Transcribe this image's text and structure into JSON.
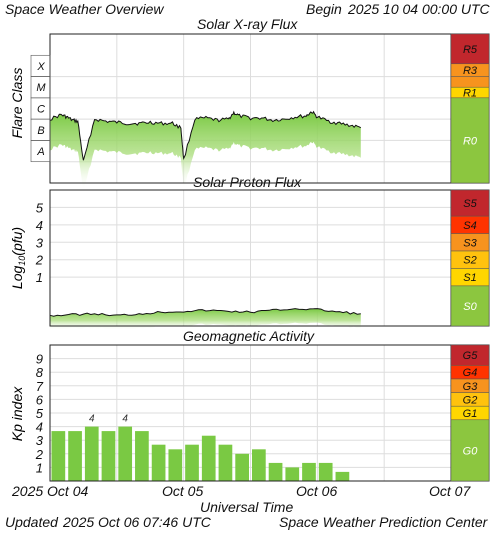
{
  "header": {
    "title": "Space Weather Overview",
    "begin_label": "Begin",
    "begin_time": "2025 10 04 00:00 UTC"
  },
  "footer": {
    "updated_label": "Updated",
    "updated_time": "2025 Oct 06 07:46 UTC",
    "source": "Space Weather Prediction Center"
  },
  "time_axis": {
    "label": "Universal Time",
    "ticks": [
      "2025 Oct 04",
      "Oct 05",
      "Oct 06",
      "Oct 07"
    ],
    "range_hours": [
      0,
      72
    ],
    "data_end_hours": 55.8
  },
  "colors": {
    "data_green": "#7ac943",
    "grid": "#dddddd",
    "scale_green": "#8cc63f",
    "yellow": "#ffd600",
    "orange": "#f7931e",
    "red_orange": "#ff3300",
    "dark_red": "#c1272d"
  },
  "chart_data": [
    {
      "id": "xray",
      "type": "line",
      "title": "Solar X-ray Flux",
      "ylabel": "Flare Class",
      "x_units": "hours since 2025-10-04 00:00 UTC",
      "y_scale": "log",
      "ylim_log10_wm2": [
        -9,
        -2
      ],
      "classes": [
        "X",
        "M",
        "C",
        "B",
        "A"
      ],
      "x": [
        0,
        2,
        3,
        4,
        5,
        6,
        8,
        10,
        12,
        14,
        16,
        18,
        20,
        22,
        23.5,
        24,
        26,
        28,
        30,
        32,
        33,
        34,
        36,
        38,
        40,
        42,
        44,
        46,
        47,
        48,
        50,
        52,
        54,
        55.8
      ],
      "y_log10": [
        -6.0,
        -5.8,
        -5.9,
        -6.05,
        -6.1,
        -8.0,
        -6.0,
        -6.1,
        -6.15,
        -6.2,
        -6.2,
        -6.15,
        -6.2,
        -6.2,
        -6.4,
        -7.9,
        -6.0,
        -5.95,
        -6.05,
        -6.0,
        -5.7,
        -5.85,
        -5.95,
        -5.95,
        -6.05,
        -6.0,
        -5.9,
        -5.85,
        -5.65,
        -5.9,
        -6.1,
        -6.2,
        -6.3,
        -6.4
      ],
      "scale": [
        {
          "label": "R5",
          "color": "#c1272d"
        },
        {
          "label": "R3",
          "color": "#f7931e"
        },
        {
          "label": "R1",
          "color": "#ffd600"
        },
        {
          "label": "R0",
          "color": "#8cc63f"
        }
      ]
    },
    {
      "id": "proton",
      "type": "line",
      "title": "Solar Proton Flux",
      "ylabel": "Log10(pfu)",
      "x_units": "hours since 2025-10-04 00:00 UTC",
      "ylim": [
        -1.8,
        6
      ],
      "yticks": [
        "1",
        "2",
        "3",
        "4",
        "5"
      ],
      "x": [
        0,
        4,
        8,
        12,
        16,
        20,
        24,
        28,
        32,
        36,
        40,
        44,
        48,
        52,
        55.8
      ],
      "values": [
        -1.2,
        -1.15,
        -1.1,
        -1.2,
        -1.1,
        -1.0,
        -0.95,
        -0.9,
        -0.95,
        -1.0,
        -0.9,
        -0.8,
        -0.85,
        -1.0,
        -1.1
      ],
      "scale": [
        {
          "label": "S5",
          "color": "#c1272d"
        },
        {
          "label": "S4",
          "color": "#ff3300"
        },
        {
          "label": "S3",
          "color": "#f7931e"
        },
        {
          "label": "S2",
          "color": "#ffc20e"
        },
        {
          "label": "S1",
          "color": "#ffd600"
        },
        {
          "label": "S0",
          "color": "#8cc63f"
        }
      ]
    },
    {
      "id": "kp",
      "type": "bar",
      "title": "Geomagnetic Activity",
      "ylabel": "Kp index",
      "ylim": [
        0,
        10
      ],
      "yticks": [
        "1",
        "2",
        "3",
        "4",
        "5",
        "6",
        "7",
        "8",
        "9"
      ],
      "interval_hours": 3,
      "values": [
        3.67,
        3.67,
        4.0,
        3.67,
        4.0,
        3.67,
        2.67,
        2.33,
        2.67,
        3.33,
        2.67,
        2.0,
        2.33,
        1.33,
        1.0,
        1.33,
        1.33,
        0.67
      ],
      "data_labels": [
        {
          "index": 2,
          "text": "4"
        },
        {
          "index": 4,
          "text": "4"
        }
      ],
      "scale": [
        {
          "label": "G5",
          "color": "#c1272d"
        },
        {
          "label": "G4",
          "color": "#ff3300"
        },
        {
          "label": "G3",
          "color": "#f7931e"
        },
        {
          "label": "G2",
          "color": "#ffc20e"
        },
        {
          "label": "G1",
          "color": "#ffd600"
        },
        {
          "label": "G0",
          "color": "#8cc63f"
        }
      ]
    }
  ]
}
